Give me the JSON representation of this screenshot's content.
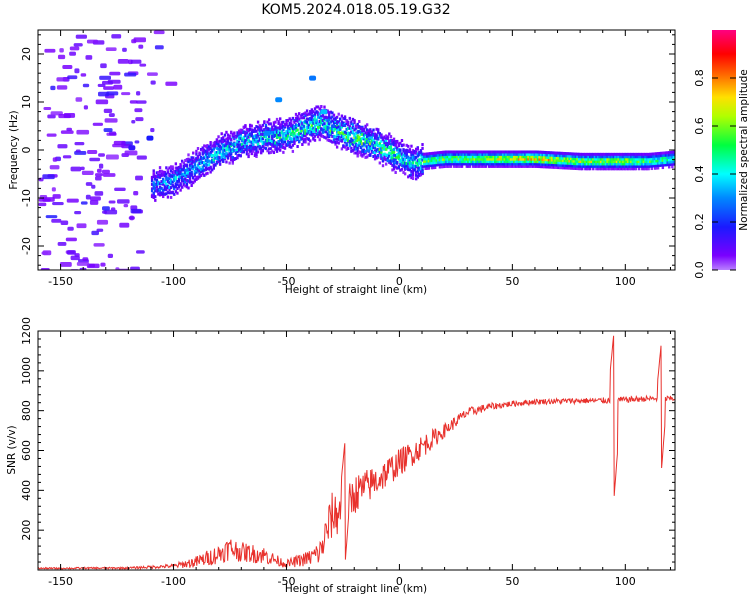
{
  "figure_title": "KOM5.2024.018.05.19.G32",
  "chart_data": [
    {
      "type": "heatmap",
      "xlabel": "Height of straight line (km)",
      "ylabel": "Frequency (Hz)",
      "xlim": [
        -160,
        122
      ],
      "ylim": [
        -25,
        25
      ],
      "xticks": [
        -150,
        -100,
        -50,
        0,
        50,
        100
      ],
      "yticks": [
        -20,
        -10,
        0,
        10,
        20
      ],
      "colorbar": {
        "label": "Normalized spectral amplitude",
        "range": [
          0,
          1
        ],
        "ticks": [
          "0.0",
          "0.2",
          "0.4",
          "0.6",
          "0.8"
        ],
        "colormap": "rainbow (purple-blue-cyan-green-yellow-red-magenta)"
      },
      "ridge": {
        "x": [
          -110,
          -100,
          -90,
          -80,
          -70,
          -60,
          -50,
          -40,
          -35,
          -30,
          -20,
          -10,
          0,
          5,
          10,
          20,
          40,
          60,
          80,
          100,
          110,
          122
        ],
        "y": [
          -7,
          -6,
          -3,
          0,
          2,
          3,
          3.5,
          5.5,
          6,
          5,
          3,
          1.5,
          -1,
          -2.5,
          -2,
          -1.5,
          -1.5,
          -1.5,
          -2,
          -2,
          -2,
          -1.5
        ],
        "amplitude": [
          0.3,
          0.35,
          0.35,
          0.4,
          0.4,
          0.45,
          0.45,
          0.5,
          0.45,
          0.5,
          0.55,
          0.5,
          0.45,
          0.4,
          0.5,
          0.55,
          0.6,
          0.7,
          0.6,
          0.6,
          0.5,
          0.45
        ]
      },
      "noise_region_x": [
        -160,
        -115
      ],
      "noise_amplitude": 0.1
    },
    {
      "type": "line",
      "xlabel": "Height of straight line (km)",
      "ylabel": "SNR (v/v)",
      "xlim": [
        -160,
        122
      ],
      "ylim": [
        0,
        1200
      ],
      "xticks": [
        -150,
        -100,
        -50,
        0,
        50,
        100
      ],
      "yticks": [
        200,
        400,
        600,
        800,
        1000,
        1200
      ],
      "color": "#e8312c",
      "envelope": {
        "x": [
          -160,
          -120,
          -100,
          -90,
          -80,
          -75,
          -70,
          -60,
          -55,
          -50,
          -40,
          -35,
          -30,
          -25,
          -20,
          -10,
          0,
          10,
          20,
          30,
          40,
          50,
          60,
          80,
          90,
          100,
          110,
          122
        ],
        "y": [
          8,
          10,
          20,
          40,
          80,
          110,
          90,
          75,
          50,
          30,
          60,
          90,
          270,
          300,
          380,
          450,
          540,
          620,
          700,
          790,
          820,
          835,
          845,
          850,
          850,
          855,
          860,
          860
        ],
        "noise": [
          4,
          5,
          10,
          30,
          50,
          60,
          50,
          45,
          30,
          20,
          40,
          70,
          120,
          110,
          100,
          80,
          70,
          60,
          35,
          25,
          18,
          15,
          14,
          14,
          16,
          15,
          15,
          14
        ]
      },
      "spikes": [
        {
          "x": 95,
          "y_max": 1200,
          "y_min": 360
        },
        {
          "x": 116,
          "y_max": 1150,
          "y_min": 500
        },
        {
          "x": -24,
          "y_max": 660,
          "y_min": 40
        }
      ]
    }
  ]
}
